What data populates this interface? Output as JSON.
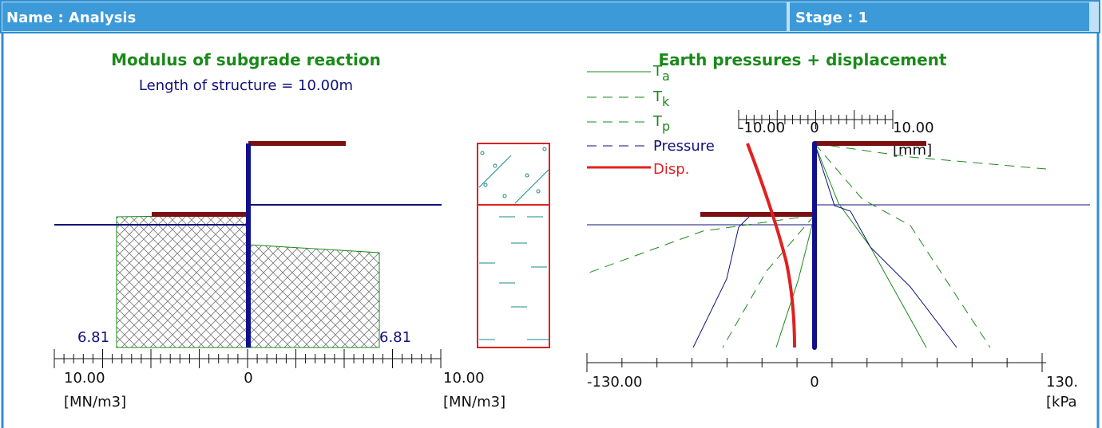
{
  "header": {
    "name": "Name : Analysis",
    "stage": "Stage : 1"
  },
  "left_panel": {
    "title": "Modulus of subgrade reaction",
    "subtitle": "Length of structure = 10.00m",
    "axis": {
      "left_label": "10.00",
      "zero_label": "0",
      "right_label": "10.00",
      "left_unit": "[MN/m3]",
      "right_unit": "[MN/m3]"
    },
    "annotations": [
      "6.81",
      "6.81"
    ]
  },
  "right_panel": {
    "title": "Earth pressures + displacement",
    "legend": [
      {
        "label": "T",
        "sub": "a"
      },
      {
        "label": "T",
        "sub": "k"
      },
      {
        "label": "T",
        "sub": "p"
      },
      {
        "label": "Pressure"
      },
      {
        "label": "Disp."
      }
    ],
    "disp_axis": {
      "left_label": "-10.00",
      "zero_label": "0",
      "right_label": "10.00",
      "unit": "[mm]"
    },
    "pressure_axis": {
      "left_label": "-130.00",
      "zero_label": "0",
      "right_label": "130.",
      "unit": "[kPa"
    }
  }
}
